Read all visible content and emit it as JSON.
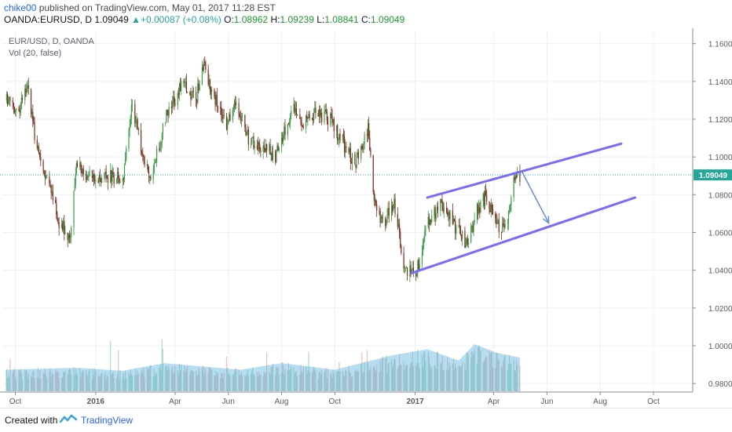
{
  "header": {
    "author": "chike00",
    "published_text": " published on TradingView.com, May 01, 2017 11:28 EST",
    "symbol": "OANDA:EURUSD, D",
    "last": "1.09049",
    "change_arrow": "▲",
    "change": "+0.00087 (+0.08%)",
    "o_label": "O:",
    "o_value": "1.08962",
    "h_label": "H:",
    "h_value": "1.09239",
    "l_label": "L:",
    "l_value": "1.08841",
    "c_label": "C:",
    "c_value": "1.09049"
  },
  "legend": {
    "series_name": "EUR/USD, D, OANDA",
    "volume_name": "Vol (20, false)"
  },
  "footer": {
    "created_with": "Created with",
    "brand": "TradingView",
    "logo_icon": "tradingview-logo-icon"
  },
  "chart_data": {
    "type": "candlestick",
    "symbol": "EUR/USD",
    "interval": "D",
    "y_tick_labels": [
      "1.16000",
      "1.14000",
      "1.12000",
      "1.10000",
      "1.08000",
      "1.06000",
      "1.04000",
      "1.02000",
      "1.00000",
      "0.98000"
    ],
    "y_ticks": [
      1.16,
      1.14,
      1.12,
      1.1,
      1.08,
      1.06,
      1.04,
      1.02,
      1.0,
      0.98
    ],
    "ylim": [
      0.9755,
      1.1665
    ],
    "x_tick_labels": [
      "Oct",
      "2016",
      "Apr",
      "Jun",
      "Aug",
      "Oct",
      "2017",
      "Apr",
      "Jun",
      "Aug",
      "Oct"
    ],
    "x_ticks": [
      "2015-10-01",
      "2016-01-01",
      "2016-04-01",
      "2016-06-01",
      "2016-08-01",
      "2016-10-01",
      "2017-01-01",
      "2017-04-01",
      "2017-06-01",
      "2017-08-01",
      "2017-10-01"
    ],
    "x_range": [
      "2015-09-17",
      "2017-11-15"
    ],
    "last_price": 1.09049,
    "last_price_label": "1.09049",
    "colors": {
      "up": "#3b9a48",
      "down": "#7e2a1e",
      "volume": "#5fb3e0",
      "trend": "#7b6cf6",
      "price_line": "#26a69a"
    },
    "close_path": [
      [
        "2015-09-20",
        1.13
      ],
      [
        "2015-10-05",
        1.124
      ],
      [
        "2015-10-15",
        1.138
      ],
      [
        "2015-10-25",
        1.105
      ],
      [
        "2015-11-05",
        1.09
      ],
      [
        "2015-11-20",
        1.066
      ],
      [
        "2015-12-03",
        1.058
      ],
      [
        "2015-12-10",
        1.098
      ],
      [
        "2015-12-20",
        1.092
      ],
      [
        "2016-01-01",
        1.086
      ],
      [
        "2016-01-15",
        1.09
      ],
      [
        "2016-02-01",
        1.088
      ],
      [
        "2016-02-11",
        1.128
      ],
      [
        "2016-02-25",
        1.1
      ],
      [
        "2016-03-05",
        1.088
      ],
      [
        "2016-03-20",
        1.12
      ],
      [
        "2016-04-10",
        1.14
      ],
      [
        "2016-04-25",
        1.13
      ],
      [
        "2016-05-03",
        1.15
      ],
      [
        "2016-05-15",
        1.132
      ],
      [
        "2016-05-30",
        1.118
      ],
      [
        "2016-06-10",
        1.13
      ],
      [
        "2016-06-24",
        1.11
      ],
      [
        "2016-07-10",
        1.106
      ],
      [
        "2016-07-25",
        1.1
      ],
      [
        "2016-08-15",
        1.126
      ],
      [
        "2016-08-28",
        1.118
      ],
      [
        "2016-09-10",
        1.124
      ],
      [
        "2016-09-25",
        1.12
      ],
      [
        "2016-10-10",
        1.108
      ],
      [
        "2016-10-25",
        1.096
      ],
      [
        "2016-11-08",
        1.114
      ],
      [
        "2016-11-15",
        1.076
      ],
      [
        "2016-11-25",
        1.064
      ],
      [
        "2016-12-08",
        1.076
      ],
      [
        "2016-12-20",
        1.04
      ],
      [
        "2017-01-03",
        1.04
      ],
      [
        "2017-01-15",
        1.064
      ],
      [
        "2017-02-01",
        1.076
      ],
      [
        "2017-02-20",
        1.06
      ],
      [
        "2017-03-01",
        1.054
      ],
      [
        "2017-03-15",
        1.074
      ],
      [
        "2017-03-24",
        1.08
      ],
      [
        "2017-04-05",
        1.064
      ],
      [
        "2017-04-15",
        1.062
      ],
      [
        "2017-04-24",
        1.088
      ],
      [
        "2017-05-01",
        1.09
      ]
    ],
    "annotations": {
      "channel_upper": [
        [
          "2017-01-15",
          1.0785
        ],
        [
          "2017-08-25",
          1.107
        ]
      ],
      "channel_lower": [
        [
          "2016-12-28",
          1.0385
        ],
        [
          "2017-09-10",
          1.0785
        ]
      ],
      "arrow": [
        [
          "2017-05-03",
          1.0925
        ],
        [
          "2017-06-03",
          1.065
        ]
      ]
    },
    "volume_path": [
      [
        "2015-09-20",
        0.42
      ],
      [
        "2015-12-10",
        0.46
      ],
      [
        "2016-02-01",
        0.4
      ],
      [
        "2016-03-20",
        0.55
      ],
      [
        "2016-06-15",
        0.42
      ],
      [
        "2016-08-01",
        0.55
      ],
      [
        "2016-10-01",
        0.42
      ],
      [
        "2016-12-05",
        0.7
      ],
      [
        "2017-01-15",
        0.82
      ],
      [
        "2017-02-20",
        0.6
      ],
      [
        "2017-03-10",
        0.92
      ],
      [
        "2017-04-05",
        0.75
      ],
      [
        "2017-05-01",
        0.66
      ]
    ]
  }
}
